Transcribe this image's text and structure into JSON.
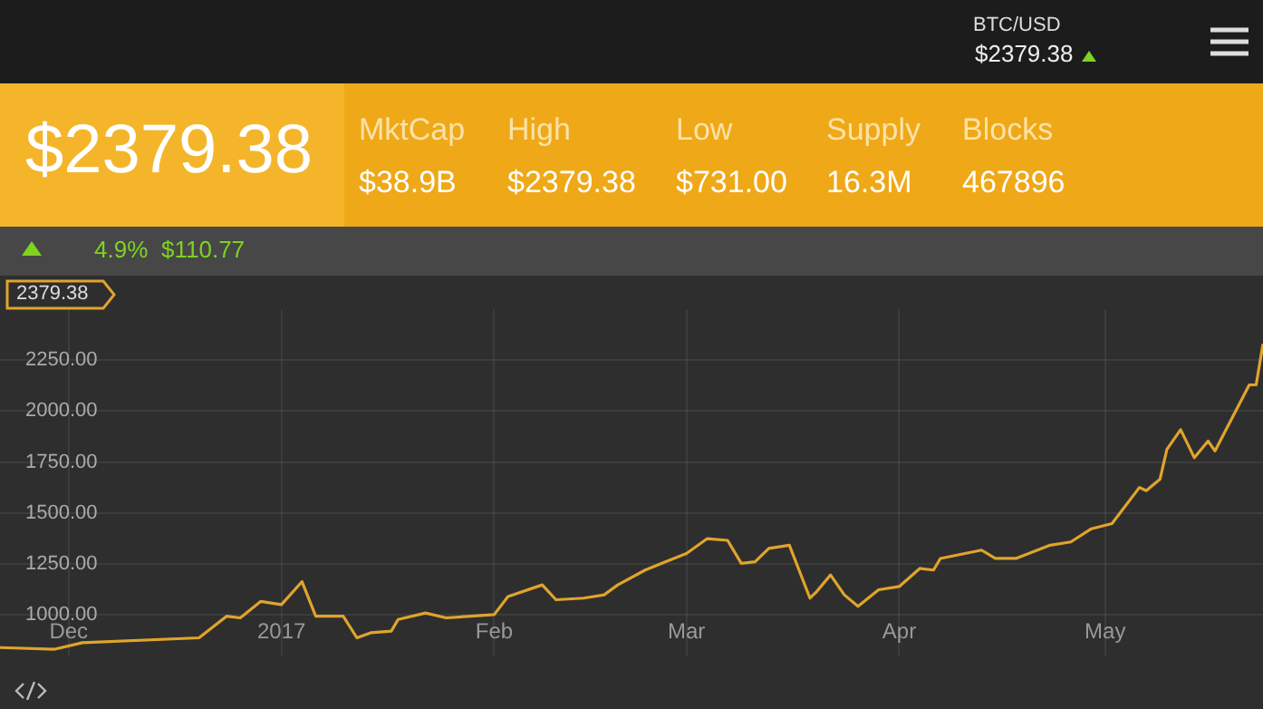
{
  "chart_data": {
    "type": "line",
    "x": [
      "2016-11-21",
      "2016-11-29",
      "2016-12-03",
      "2016-12-20",
      "2016-12-24",
      "2016-12-26",
      "2016-12-29",
      "2017-01-01",
      "2017-01-04",
      "2017-01-06",
      "2017-01-10",
      "2017-01-12",
      "2017-01-14",
      "2017-01-17",
      "2017-01-18",
      "2017-01-22",
      "2017-01-25",
      "2017-02-01",
      "2017-02-03",
      "2017-02-08",
      "2017-02-10",
      "2017-02-14",
      "2017-02-17",
      "2017-02-19",
      "2017-02-23",
      "2017-02-26",
      "2017-03-01",
      "2017-03-04",
      "2017-03-07",
      "2017-03-09",
      "2017-03-11",
      "2017-03-13",
      "2017-03-16",
      "2017-03-19",
      "2017-03-20",
      "2017-03-22",
      "2017-03-24",
      "2017-03-26",
      "2017-03-29",
      "2017-04-01",
      "2017-04-04",
      "2017-04-06",
      "2017-04-07",
      "2017-04-13",
      "2017-04-15",
      "2017-04-18",
      "2017-04-23",
      "2017-04-26",
      "2017-04-29",
      "2017-05-02",
      "2017-05-06",
      "2017-05-07",
      "2017-05-09",
      "2017-05-10",
      "2017-05-12",
      "2017-05-14",
      "2017-05-16",
      "2017-05-17",
      "2017-05-22",
      "2017-05-23",
      "2017-05-24"
    ],
    "series": [
      {
        "color": "#e0a42c",
        "values": [
          838,
          830,
          862,
          886,
          992,
          984,
          1065,
          1049,
          1162,
          992,
          992,
          886,
          911,
          919,
          976,
          1008,
          984,
          1000,
          1089,
          1146,
          1073,
          1081,
          1097,
          1146,
          1219,
          1260,
          1300,
          1373,
          1365,
          1252,
          1260,
          1325,
          1341,
          1081,
          1114,
          1195,
          1097,
          1041,
          1122,
          1138,
          1227,
          1219,
          1276,
          1317,
          1276,
          1276,
          1341,
          1357,
          1422,
          1447,
          1625,
          1609,
          1666,
          1812,
          1909,
          1771,
          1853,
          1804,
          2129,
          2129,
          2330
        ]
      }
    ],
    "xlim": [
      "2016-11-21",
      "2017-05-24"
    ],
    "xticks": [
      {
        "value": "2016-12-01",
        "label": "Dec"
      },
      {
        "value": "2017-01-01",
        "label": "2017"
      },
      {
        "value": "2017-02-01",
        "label": "Feb"
      },
      {
        "value": "2017-03-01",
        "label": "Mar"
      },
      {
        "value": "2017-04-01",
        "label": "Apr"
      },
      {
        "value": "2017-05-01",
        "label": "May"
      }
    ],
    "ylim": [
      800,
      2500
    ],
    "yticks": [
      {
        "value": 1000,
        "label": "1000.00"
      },
      {
        "value": 1250,
        "label": "1250.00"
      },
      {
        "value": 1500,
        "label": "1500.00"
      },
      {
        "value": 1750,
        "label": "1750.00"
      },
      {
        "value": 2000,
        "label": "2000.00"
      },
      {
        "value": 2250,
        "label": "2250.00"
      }
    ],
    "grid": true,
    "legend": false,
    "marker": "none",
    "line_style": "solid",
    "annotations": [
      "BTC/USD",
      "$2379.38",
      "$2379.38",
      "MktCap",
      "$38.9B",
      "High",
      "$2379.38",
      "Low",
      "$731.00",
      "Supply",
      "16.3M",
      "Blocks",
      "467896",
      "4.9%",
      "$110.77",
      "2379.38"
    ]
  }
}
